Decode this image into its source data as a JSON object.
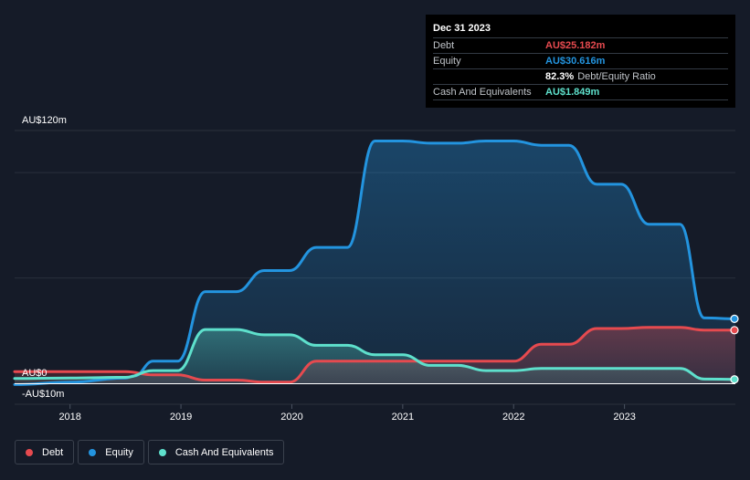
{
  "tooltip": {
    "date": "Dec 31 2023",
    "debt_label": "Debt",
    "debt_value": "AU$25.182m",
    "equity_label": "Equity",
    "equity_value": "AU$30.616m",
    "ratio_value": "82.3%",
    "ratio_label": "Debt/Equity Ratio",
    "cash_label": "Cash And Equivalents",
    "cash_value": "AU$1.849m"
  },
  "legend": [
    {
      "label": "Debt",
      "color": "#e64a4f"
    },
    {
      "label": "Equity",
      "color": "#2394df"
    },
    {
      "label": "Cash And Equivalents",
      "color": "#5ee0cc"
    }
  ],
  "colors": {
    "debt": "#e64a4f",
    "equity": "#2394df",
    "cash": "#5ee0cc",
    "grid": "#2a303c",
    "zero_line": "#ffffff"
  },
  "chart_data": {
    "type": "area",
    "title": "",
    "y_top_label": "AU$120m",
    "y_zero_label": "AU$0",
    "y_bottom_label": "-AU$10m",
    "ylim": [
      -10,
      120
    ],
    "xlim": [
      2017.5,
      2024.0
    ],
    "x_ticks": [
      2018,
      2019,
      2020,
      2021,
      2022,
      2023
    ],
    "x_tick_labels": [
      "2018",
      "2019",
      "2020",
      "2021",
      "2022",
      "2023"
    ],
    "series": [
      {
        "name": "Equity",
        "points": [
          [
            2017.5,
            -0.6
          ],
          [
            2018.0,
            0.5
          ],
          [
            2018.5,
            2.5
          ],
          [
            2018.58,
            3.5
          ],
          [
            2018.75,
            10.5
          ],
          [
            2018.97,
            10.5
          ],
          [
            2019.22,
            43.5
          ],
          [
            2019.5,
            43.5
          ],
          [
            2019.75,
            53.5
          ],
          [
            2019.98,
            53.5
          ],
          [
            2020.22,
            64.5
          ],
          [
            2020.5,
            64.5
          ],
          [
            2020.75,
            115.0
          ],
          [
            2021.0,
            115.0
          ],
          [
            2021.25,
            114.0
          ],
          [
            2021.5,
            114.0
          ],
          [
            2021.75,
            115.0
          ],
          [
            2022.0,
            115.0
          ],
          [
            2022.25,
            113.0
          ],
          [
            2022.5,
            113.0
          ],
          [
            2022.75,
            94.5
          ],
          [
            2022.97,
            94.5
          ],
          [
            2023.22,
            75.5
          ],
          [
            2023.5,
            75.5
          ],
          [
            2023.72,
            31.0
          ],
          [
            2024.0,
            30.6
          ]
        ]
      },
      {
        "name": "Debt",
        "points": [
          [
            2017.5,
            5.5
          ],
          [
            2018.0,
            5.5
          ],
          [
            2018.5,
            5.5
          ],
          [
            2018.75,
            4.0
          ],
          [
            2018.97,
            4.0
          ],
          [
            2019.22,
            1.5
          ],
          [
            2019.5,
            1.5
          ],
          [
            2019.75,
            0.5
          ],
          [
            2019.98,
            0.5
          ],
          [
            2020.22,
            10.5
          ],
          [
            2020.5,
            10.5
          ],
          [
            2020.75,
            10.5
          ],
          [
            2021.0,
            10.5
          ],
          [
            2021.25,
            10.5
          ],
          [
            2021.5,
            10.5
          ],
          [
            2021.75,
            10.5
          ],
          [
            2022.0,
            10.5
          ],
          [
            2022.25,
            18.5
          ],
          [
            2022.5,
            18.5
          ],
          [
            2022.75,
            26.0
          ],
          [
            2022.97,
            26.0
          ],
          [
            2023.22,
            26.5
          ],
          [
            2023.5,
            26.5
          ],
          [
            2023.72,
            25.2
          ],
          [
            2024.0,
            25.2
          ]
        ]
      },
      {
        "name": "Cash And Equivalents",
        "points": [
          [
            2017.5,
            2.3
          ],
          [
            2018.0,
            2.5
          ],
          [
            2018.5,
            2.8
          ],
          [
            2018.75,
            6.0
          ],
          [
            2018.97,
            6.0
          ],
          [
            2019.22,
            25.5
          ],
          [
            2019.5,
            25.5
          ],
          [
            2019.75,
            23.0
          ],
          [
            2019.98,
            23.0
          ],
          [
            2020.22,
            18.0
          ],
          [
            2020.5,
            18.0
          ],
          [
            2020.75,
            13.5
          ],
          [
            2021.0,
            13.5
          ],
          [
            2021.25,
            8.5
          ],
          [
            2021.5,
            8.5
          ],
          [
            2021.75,
            6.0
          ],
          [
            2022.0,
            6.0
          ],
          [
            2022.25,
            7.0
          ],
          [
            2022.5,
            7.0
          ],
          [
            2022.75,
            7.0
          ],
          [
            2022.97,
            7.0
          ],
          [
            2023.22,
            7.0
          ],
          [
            2023.5,
            7.0
          ],
          [
            2023.72,
            2.0
          ],
          [
            2024.0,
            1.85
          ]
        ]
      }
    ]
  }
}
